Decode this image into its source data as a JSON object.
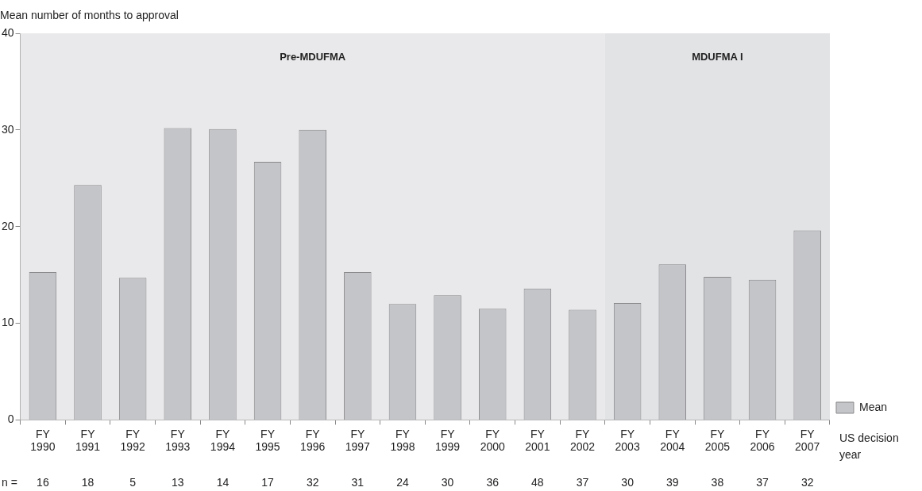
{
  "chart_data": {
    "type": "bar",
    "ylabel": "Mean number of months to approval",
    "xlabel": "US decision year",
    "categories": [
      "FY 1990",
      "FY 1991",
      "FY 1992",
      "FY 1993",
      "FY 1994",
      "FY 1995",
      "FY 1996",
      "FY 1997",
      "FY 1998",
      "FY 1999",
      "FY 2000",
      "FY 2001",
      "FY 2002",
      "FY 2003",
      "FY 2004",
      "FY 2005",
      "FY 2006",
      "FY 2007"
    ],
    "series": [
      {
        "name": "Mean",
        "color": "#c4c5c9",
        "values": [
          15.3,
          24.3,
          14.7,
          30.2,
          30.1,
          26.7,
          30.0,
          15.3,
          12.0,
          12.9,
          11.5,
          13.6,
          11.4,
          12.1,
          16.1,
          14.8,
          14.5,
          19.6
        ]
      }
    ],
    "ylim": [
      0,
      40
    ],
    "yticks": [
      0,
      10,
      20,
      30,
      40
    ],
    "grid": false,
    "legend": "bottom right",
    "bands": [
      {
        "axis": "x",
        "from": "FY 1990",
        "to": "FY 2002",
        "label": "Pre-MDUFMA",
        "color": "#e9e9eb"
      },
      {
        "axis": "x",
        "from": "FY 2003",
        "to": "FY 2007",
        "label": "MDUFMA I",
        "color": "#e2e3e5"
      }
    ],
    "annotations": [
      "n =",
      "16",
      "18",
      "5",
      "13",
      "14",
      "17",
      "32",
      "31",
      "24",
      "30",
      "36",
      "48",
      "37",
      "30",
      "39",
      "38",
      "37",
      "32"
    ]
  }
}
